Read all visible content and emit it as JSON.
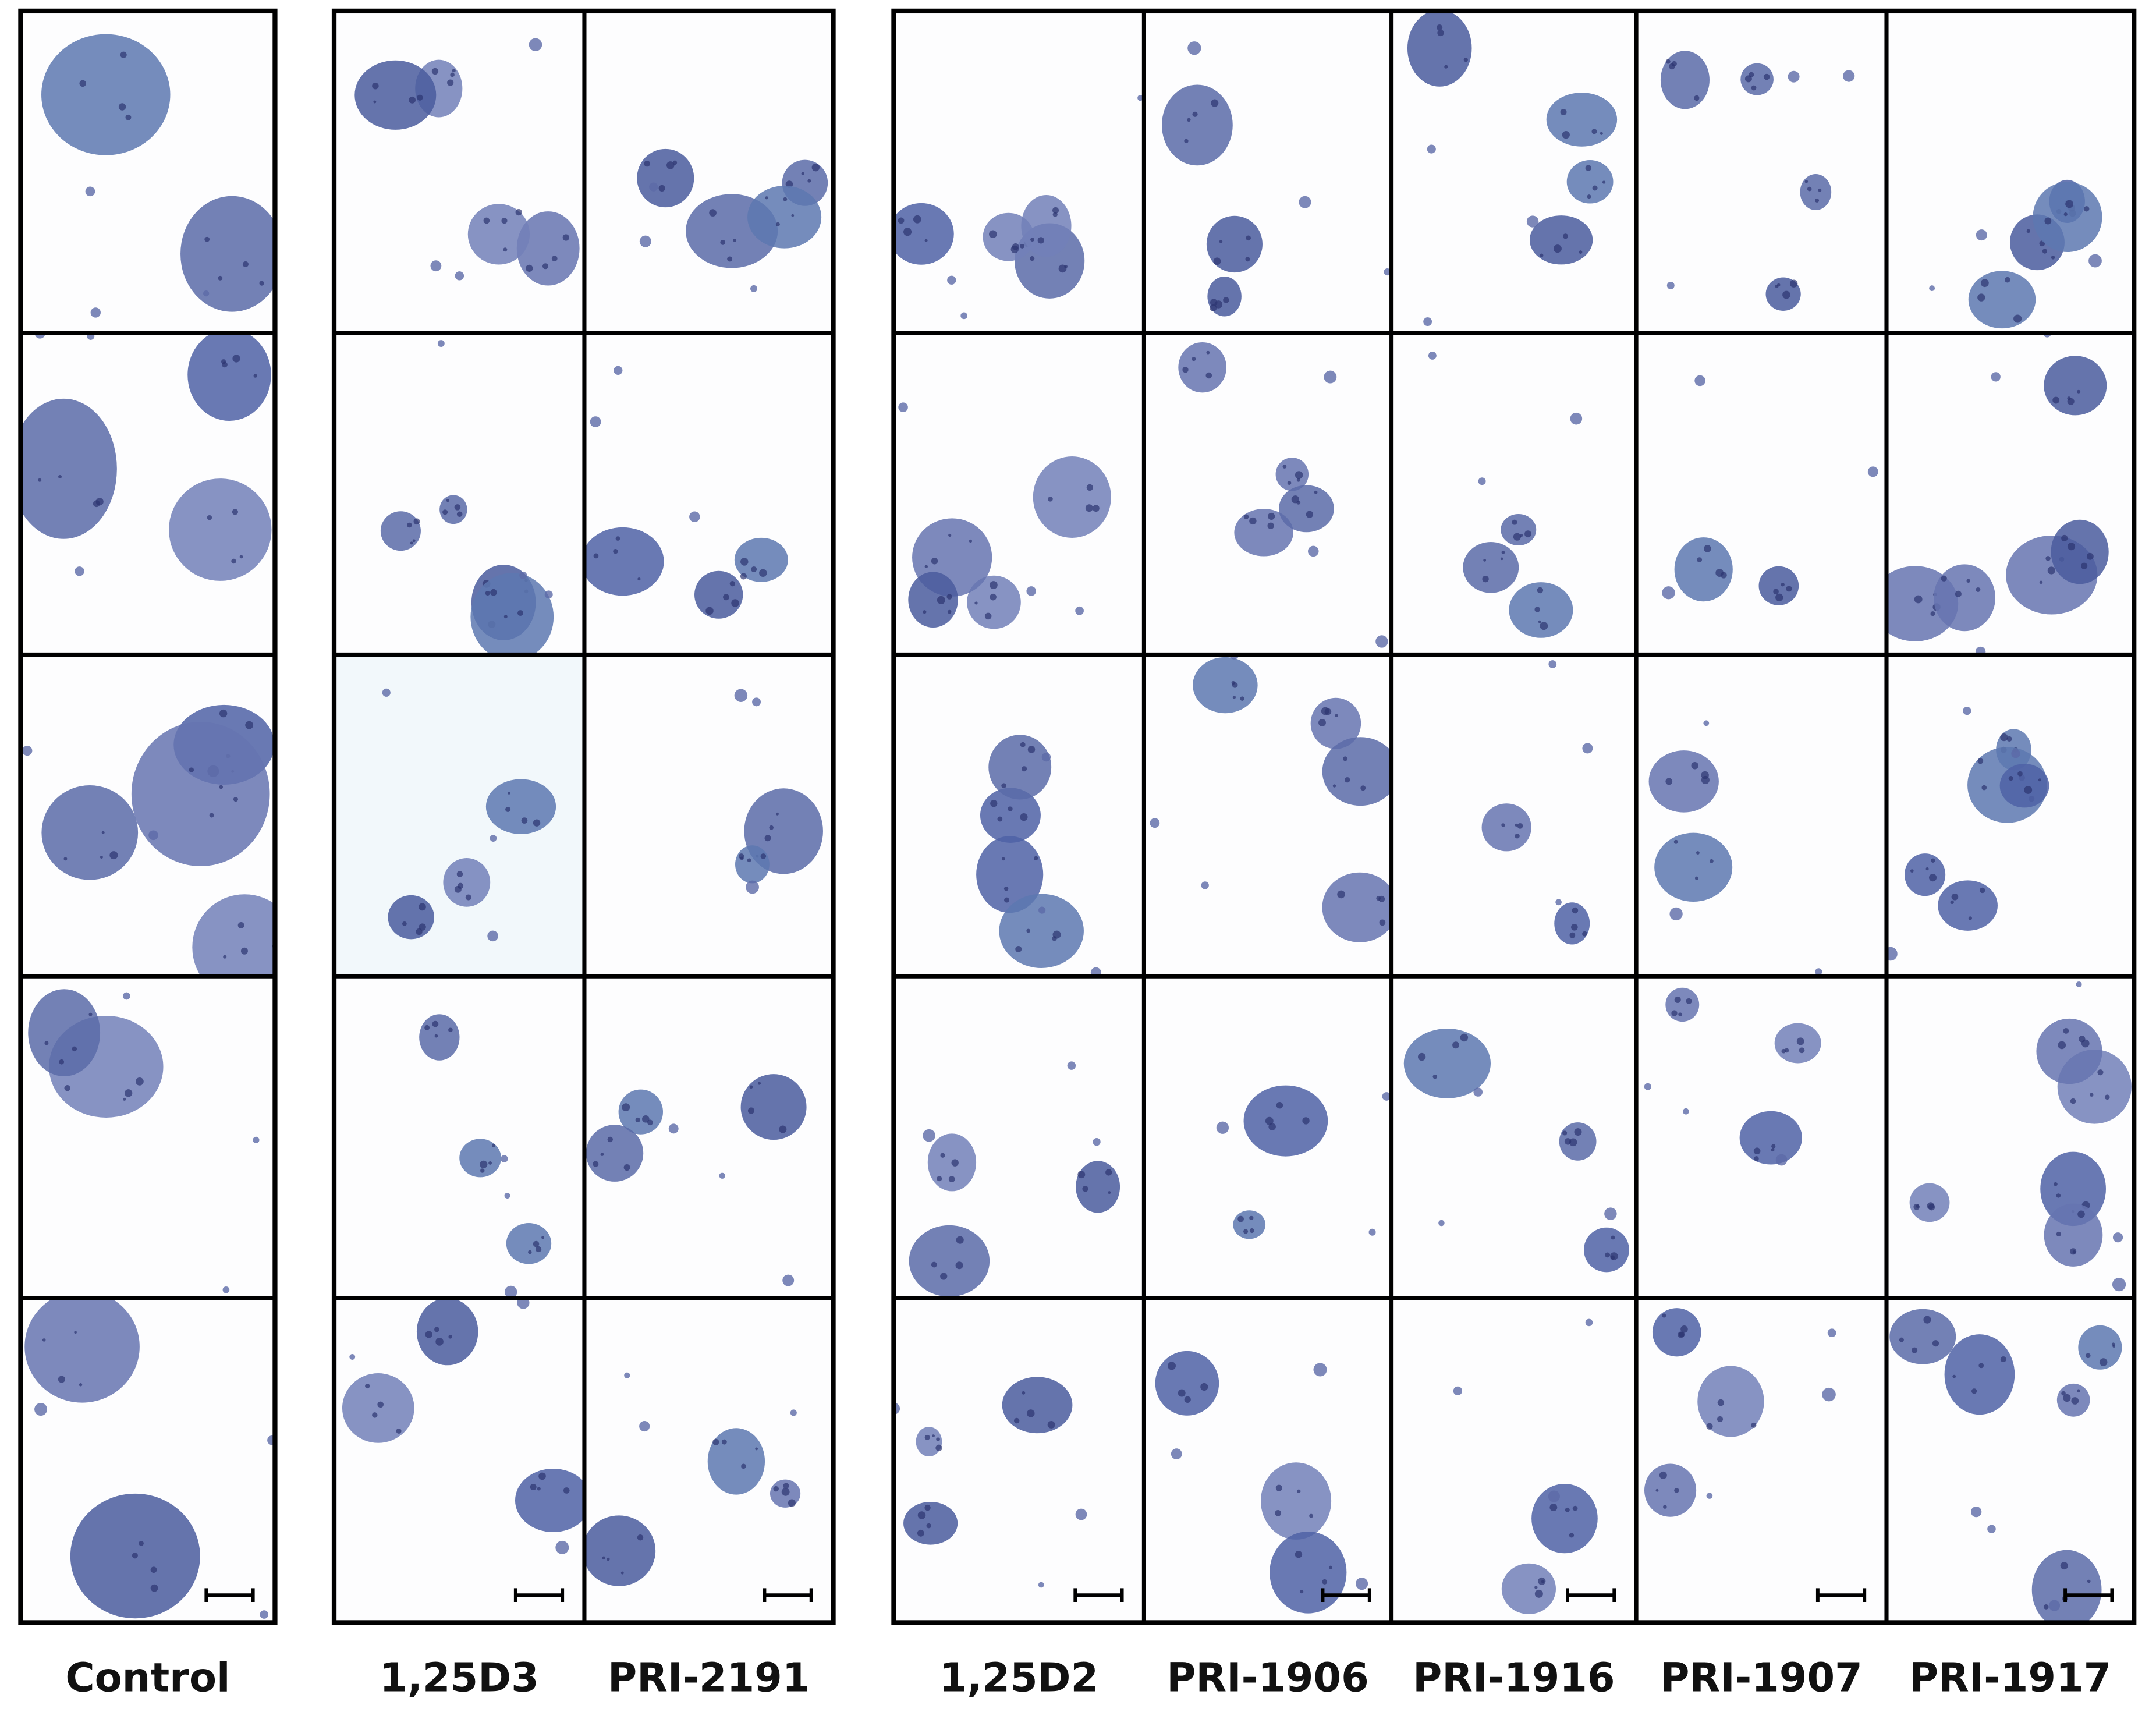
{
  "columns": [
    {
      "label": "Control"
    },
    {
      "label": "1,25D3"
    },
    {
      "label": "PRI-2191"
    },
    {
      "label": "1,25D2"
    },
    {
      "label": "PRI-1906"
    },
    {
      "label": "PRI-1916"
    },
    {
      "label": "PRI-1907"
    },
    {
      "label": "PRI-1917"
    }
  ]
}
